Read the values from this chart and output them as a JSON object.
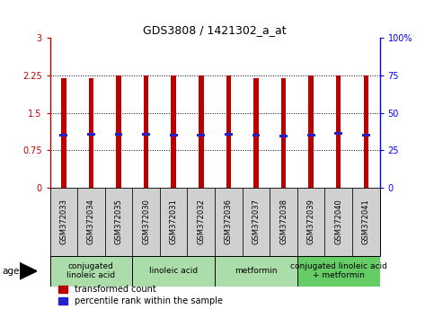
{
  "title": "GDS3808 / 1421302_a_at",
  "samples": [
    "GSM372033",
    "GSM372034",
    "GSM372035",
    "GSM372030",
    "GSM372031",
    "GSM372032",
    "GSM372036",
    "GSM372037",
    "GSM372038",
    "GSM372039",
    "GSM372040",
    "GSM372041"
  ],
  "red_values": [
    2.2,
    2.2,
    2.25,
    2.25,
    2.25,
    2.25,
    2.25,
    2.2,
    2.2,
    2.25,
    2.25,
    2.25
  ],
  "blue_values_left": [
    1.05,
    1.07,
    1.07,
    1.07,
    1.06,
    1.06,
    1.07,
    1.05,
    1.04,
    1.06,
    1.08,
    1.06
  ],
  "ylim_left": [
    0,
    3
  ],
  "ylim_right": [
    0,
    100
  ],
  "yticks_left": [
    0,
    0.75,
    1.5,
    2.25,
    3
  ],
  "ytick_labels_left": [
    "0",
    "0.75",
    "1.5",
    "2.25",
    "3"
  ],
  "yticks_right": [
    0,
    25,
    50,
    75,
    100
  ],
  "ytick_labels_right": [
    "0",
    "25",
    "50",
    "75",
    "100%"
  ],
  "bar_width": 0.18,
  "red_color": "#bb0000",
  "blue_color": "#2222cc",
  "agent_groups": [
    {
      "label": "conjugated\nlinoleic acid",
      "start": 0,
      "end": 3,
      "color": "#aaddaa"
    },
    {
      "label": "linoleic acid",
      "start": 3,
      "end": 6,
      "color": "#aaddaa"
    },
    {
      "label": "metformin",
      "start": 6,
      "end": 9,
      "color": "#aaddaa"
    },
    {
      "label": "conjugated linoleic acid\n+ metformin",
      "start": 9,
      "end": 12,
      "color": "#66cc66"
    }
  ],
  "legend_red_label": "transformed count",
  "legend_blue_label": "percentile rank within the sample",
  "agent_label": "agent",
  "grid_yticks": [
    0.75,
    1.5,
    2.25
  ]
}
